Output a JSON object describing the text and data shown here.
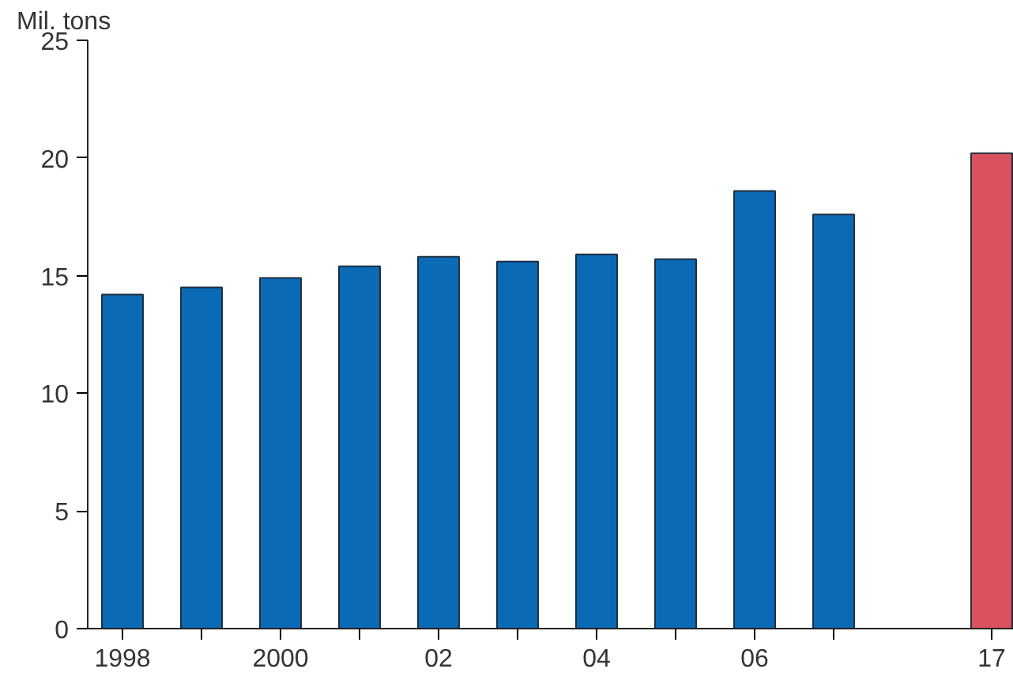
{
  "chart_data": {
    "type": "bar",
    "ylabel": "Mil. tons",
    "categories": [
      "1998",
      null,
      "2000",
      null,
      "02",
      null,
      "04",
      null,
      "06",
      null,
      null,
      "17"
    ],
    "values": [
      14.2,
      14.5,
      14.9,
      15.4,
      15.8,
      15.6,
      15.9,
      15.7,
      18.6,
      17.6,
      null,
      20.2
    ],
    "colors": [
      "#0a6ab5",
      "#0a6ab5",
      "#0a6ab5",
      "#0a6ab5",
      "#0a6ab5",
      "#0a6ab5",
      "#0a6ab5",
      "#0a6ab5",
      "#0a6ab5",
      "#0a6ab5",
      "#0a6ab5",
      "#d9525e"
    ],
    "ylim": [
      0,
      25
    ],
    "yticks": [
      0,
      5,
      10,
      15,
      20,
      25
    ],
    "grid": false
  }
}
